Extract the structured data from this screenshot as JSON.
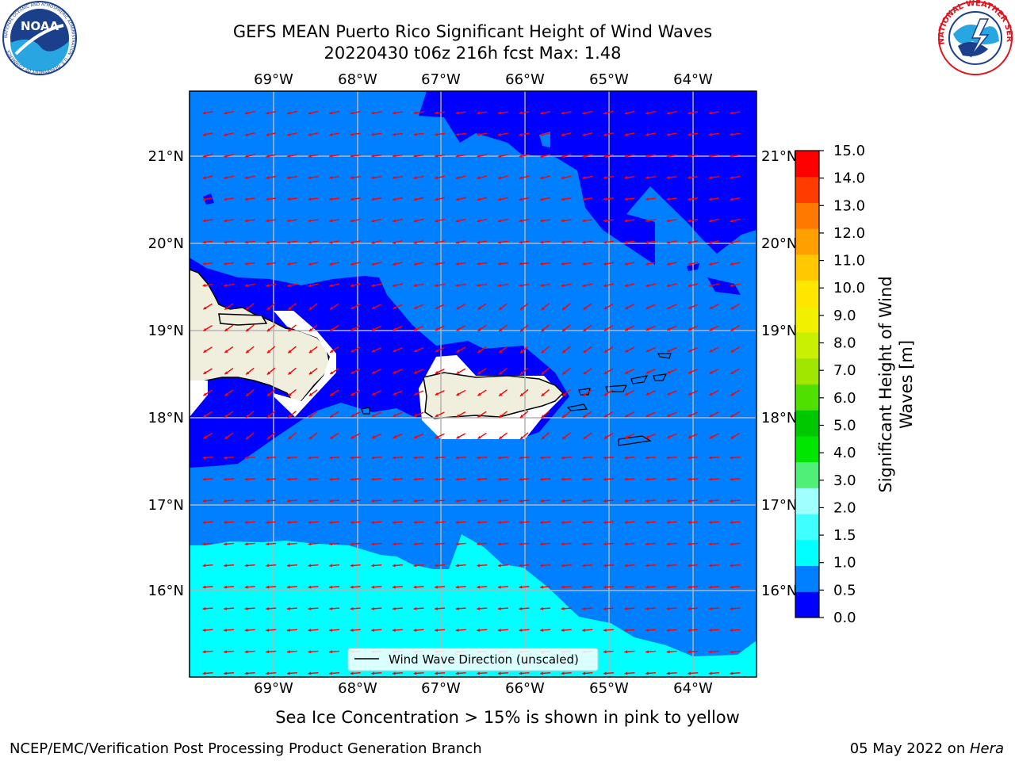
{
  "title": {
    "line1": "GEFS MEAN Puerto Rico Significant Height of Wind Waves",
    "line2": "20220430 t06z 216h fcst   Max: 1.48"
  },
  "logos": {
    "left": {
      "name": "NOAA",
      "text": "NOAA",
      "ring_text": "NATIONAL OCEANIC AND ATMOSPHERIC ADMINISTRATION · U.S. DEPARTMENT OF COMMERCE"
    },
    "right": {
      "name": "National Weather Service",
      "ring_text": "NATIONAL WEATHER SERVICE"
    }
  },
  "map": {
    "lon_labels": [
      "69°W",
      "68°W",
      "67°W",
      "66°W",
      "65°W",
      "64°W"
    ],
    "lat_labels": [
      "21°N",
      "20°N",
      "19°N",
      "18°N",
      "17°N",
      "16°N"
    ],
    "legend_label": "Wind Wave Direction (unscaled)",
    "colors": {
      "band_0_0_5": "#0000ff",
      "band_0_5_1_0": "#0080ff",
      "band_1_0_1_5": "#00ffff",
      "land": "#f0eedc",
      "arrow": "#ff0000",
      "grid": "#b4b4b4"
    }
  },
  "colorbar": {
    "label": "Significant Height of Wind Waves [m]",
    "ticks": [
      "15.0",
      "14.0",
      "13.0",
      "12.0",
      "11.0",
      "10.0",
      "9.0",
      "8.0",
      "7.0",
      "6.0",
      "5.0",
      "4.0",
      "3.0",
      "2.0",
      "1.5",
      "1.0",
      "0.5",
      "0.0"
    ],
    "bands_bottom_to_top": [
      "#0000ff",
      "#0080ff",
      "#00ffff",
      "#40ffff",
      "#a0ffff",
      "#50f078",
      "#00e600",
      "#00c800",
      "#50e000",
      "#a0e600",
      "#c8f000",
      "#f0f000",
      "#ffe600",
      "#ffc800",
      "#ffa000",
      "#ff7800",
      "#ff3c00",
      "#ff0000"
    ]
  },
  "footer": {
    "sea_ice_note": "Sea Ice Concentration > 15% is shown in pink to yellow",
    "branch": "NCEP/EMC/Verification Post Processing Product Generation Branch",
    "date": "05 May 2022 on ",
    "host": "Hera"
  }
}
